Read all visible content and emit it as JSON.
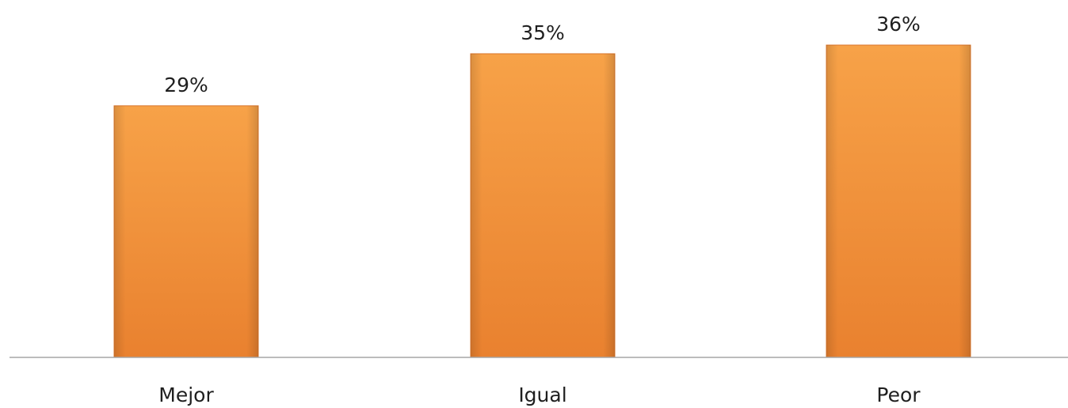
{
  "chart_data": {
    "type": "bar",
    "categories": [
      "Mejor",
      "Igual",
      "Peor"
    ],
    "values": [
      29,
      35,
      36
    ],
    "value_labels": [
      "29%",
      "35%",
      "36%"
    ],
    "unit": "%",
    "title": "",
    "xlabel": "",
    "ylabel": "",
    "ylim": [
      0,
      36
    ],
    "grid": false,
    "legend": "none",
    "colors": {
      "bar_light": "#f7a248",
      "bar_dark": "#e9812f",
      "bar_edge": "#d9742b",
      "axis": "#a6a6a6",
      "text": "#1f1f1f"
    }
  }
}
